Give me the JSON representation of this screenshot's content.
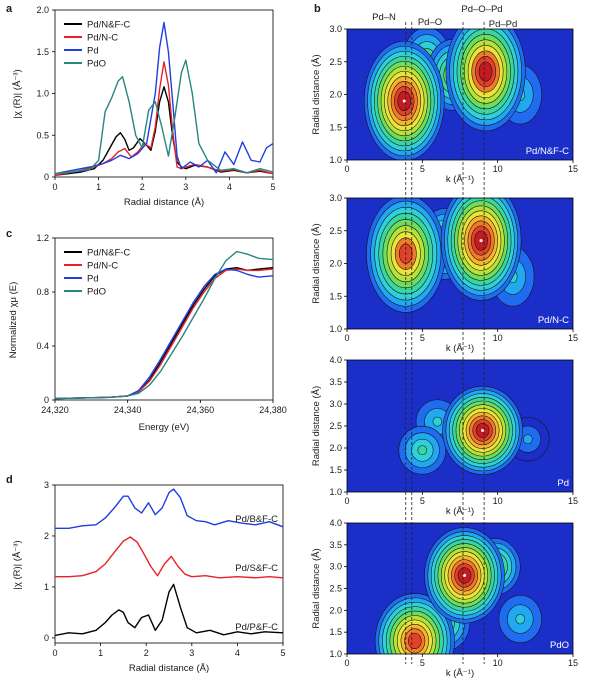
{
  "colors": {
    "Pd/N&F-C": "#000000",
    "Pd/N-C": "#e8202a",
    "Pd": "#1f3fe0",
    "PdO": "#27867e",
    "Pd/B&F-C": "#1f3fe0",
    "Pd/S&F-C": "#e8202a",
    "Pd/P&F-C": "#000000"
  },
  "chart_data": [
    {
      "panel": "a",
      "type": "line",
      "title": "",
      "xlabel": "Radial distance (Å)",
      "ylabel": "|χ (R)| (Å⁻³)",
      "xlim": [
        0,
        5
      ],
      "ylim": [
        0,
        2
      ],
      "xticks": [
        "0",
        "1",
        "2",
        "3",
        "4",
        "5"
      ],
      "yticks": [
        "0",
        "0.5",
        "1.0",
        "1.5",
        "2.0"
      ],
      "legend": [
        "Pd/N&F-C",
        "Pd/N-C",
        "Pd",
        "PdO"
      ],
      "series": [
        {
          "name": "Pd/N&F-C",
          "x": [
            0,
            0.3,
            0.6,
            0.9,
            1.1,
            1.25,
            1.4,
            1.5,
            1.6,
            1.7,
            1.8,
            1.95,
            2.1,
            2.2,
            2.3,
            2.4,
            2.5,
            2.6,
            2.7,
            2.8,
            2.9,
            3.0,
            3.2,
            3.5,
            3.8,
            4.1,
            4.4,
            4.7,
            5.0
          ],
          "y": [
            0.02,
            0.04,
            0.06,
            0.1,
            0.2,
            0.34,
            0.48,
            0.53,
            0.45,
            0.32,
            0.35,
            0.46,
            0.38,
            0.32,
            0.55,
            0.9,
            1.08,
            0.9,
            0.48,
            0.18,
            0.12,
            0.1,
            0.14,
            0.12,
            0.06,
            0.08,
            0.05,
            0.07,
            0.04
          ]
        },
        {
          "name": "Pd/N-C",
          "x": [
            0,
            0.3,
            0.6,
            0.9,
            1.1,
            1.3,
            1.45,
            1.6,
            1.75,
            1.9,
            2.05,
            2.2,
            2.3,
            2.4,
            2.5,
            2.6,
            2.7,
            2.8,
            2.9,
            3.0,
            3.2,
            3.5,
            3.8,
            4.1,
            4.4,
            4.7,
            5.0
          ],
          "y": [
            0.02,
            0.05,
            0.08,
            0.12,
            0.16,
            0.22,
            0.3,
            0.34,
            0.24,
            0.3,
            0.4,
            0.35,
            0.6,
            1.05,
            1.38,
            1.1,
            0.55,
            0.12,
            0.1,
            0.12,
            0.15,
            0.12,
            0.07,
            0.09,
            0.05,
            0.08,
            0.04
          ]
        },
        {
          "name": "Pd",
          "x": [
            0,
            0.4,
            0.8,
            1.1,
            1.3,
            1.5,
            1.7,
            1.9,
            2.1,
            2.3,
            2.4,
            2.5,
            2.6,
            2.7,
            2.8,
            2.9,
            3.1,
            3.3,
            3.5,
            3.7,
            3.9,
            4.1,
            4.3,
            4.5,
            4.7,
            4.85,
            5.0
          ],
          "y": [
            0.04,
            0.08,
            0.12,
            0.16,
            0.2,
            0.26,
            0.22,
            0.28,
            0.4,
            1.0,
            1.55,
            1.85,
            1.5,
            0.9,
            0.25,
            0.1,
            0.18,
            0.12,
            0.2,
            0.05,
            0.3,
            0.15,
            0.42,
            0.2,
            0.18,
            0.35,
            0.4
          ]
        },
        {
          "name": "PdO",
          "x": [
            0,
            0.4,
            0.8,
            1.0,
            1.15,
            1.3,
            1.45,
            1.55,
            1.7,
            1.85,
            2.0,
            2.15,
            2.3,
            2.45,
            2.6,
            2.75,
            2.9,
            3.0,
            3.15,
            3.3,
            3.5,
            3.8,
            4.1,
            4.4,
            4.7,
            5.0
          ],
          "y": [
            0.04,
            0.06,
            0.09,
            0.2,
            0.78,
            0.95,
            1.15,
            1.2,
            0.9,
            0.5,
            0.35,
            0.8,
            0.9,
            0.6,
            0.25,
            0.72,
            1.25,
            1.4,
            1.0,
            0.4,
            0.2,
            0.08,
            0.1,
            0.05,
            0.1,
            0.06
          ]
        }
      ]
    },
    {
      "panel": "c",
      "type": "line",
      "title": "",
      "xlabel": "Energy (eV)",
      "ylabel": "Normalized χμ (E)",
      "xlim": [
        24320,
        24380
      ],
      "ylim": [
        0,
        1.2
      ],
      "xticks": [
        "24,320",
        "24,340",
        "24,360",
        "24,380"
      ],
      "yticks": [
        "0",
        "0.4",
        "0.8",
        "1.2"
      ],
      "legend": [
        "Pd/N&F-C",
        "Pd/N-C",
        "Pd",
        "PdO"
      ],
      "series": [
        {
          "name": "Pd/N&F-C",
          "x": [
            24320,
            24335,
            24340,
            24343,
            24346,
            24349,
            24352,
            24355,
            24358,
            24361,
            24364,
            24367,
            24370,
            24373,
            24376,
            24380
          ],
          "y": [
            0.01,
            0.02,
            0.03,
            0.06,
            0.15,
            0.28,
            0.42,
            0.56,
            0.7,
            0.82,
            0.92,
            0.97,
            0.98,
            0.96,
            0.97,
            0.98
          ]
        },
        {
          "name": "Pd/N-C",
          "x": [
            24320,
            24335,
            24340,
            24343,
            24346,
            24349,
            24352,
            24355,
            24358,
            24361,
            24364,
            24367,
            24370,
            24373,
            24376,
            24380
          ],
          "y": [
            0.01,
            0.02,
            0.03,
            0.06,
            0.14,
            0.26,
            0.4,
            0.54,
            0.68,
            0.8,
            0.9,
            0.96,
            0.97,
            0.96,
            0.96,
            0.97
          ]
        },
        {
          "name": "Pd",
          "x": [
            24320,
            24335,
            24340,
            24343,
            24346,
            24349,
            24352,
            24355,
            24358,
            24361,
            24364,
            24367,
            24370,
            24373,
            24376,
            24380
          ],
          "y": [
            0.01,
            0.02,
            0.03,
            0.07,
            0.17,
            0.3,
            0.44,
            0.58,
            0.72,
            0.84,
            0.93,
            0.97,
            0.96,
            0.93,
            0.91,
            0.92
          ]
        },
        {
          "name": "PdO",
          "x": [
            24320,
            24335,
            24340,
            24343,
            24346,
            24349,
            24352,
            24355,
            24358,
            24361,
            24364,
            24367,
            24370,
            24373,
            24376,
            24380
          ],
          "y": [
            0.01,
            0.02,
            0.03,
            0.05,
            0.11,
            0.21,
            0.34,
            0.47,
            0.61,
            0.75,
            0.9,
            1.03,
            1.1,
            1.08,
            1.05,
            1.04
          ]
        }
      ]
    },
    {
      "panel": "d",
      "type": "line",
      "title": "",
      "xlabel": "Radial distance (Å)",
      "ylabel": "|χ (R)| (Å⁻³)",
      "xlim": [
        0,
        5
      ],
      "ylim": [
        -0.1,
        3
      ],
      "xticks": [
        "0",
        "1",
        "2",
        "3",
        "4",
        "5"
      ],
      "yticks": [
        "0",
        "1",
        "2",
        "3"
      ],
      "labels": [
        "Pd/B&F-C",
        "Pd/S&F-C",
        "Pd/P&F-C"
      ],
      "series": [
        {
          "name": "Pd/B&F-C",
          "x": [
            0,
            0.3,
            0.6,
            0.9,
            1.1,
            1.3,
            1.5,
            1.6,
            1.75,
            1.9,
            2.05,
            2.2,
            2.35,
            2.5,
            2.6,
            2.75,
            2.9,
            3.1,
            3.3,
            3.5,
            3.8,
            4.1,
            4.4,
            4.7,
            5.0
          ],
          "y": [
            2.15,
            2.15,
            2.2,
            2.22,
            2.35,
            2.55,
            2.78,
            2.78,
            2.55,
            2.45,
            2.65,
            2.42,
            2.55,
            2.85,
            2.92,
            2.75,
            2.4,
            2.3,
            2.28,
            2.22,
            2.3,
            2.25,
            2.22,
            2.28,
            2.18
          ]
        },
        {
          "name": "Pd/S&F-C",
          "x": [
            0,
            0.3,
            0.6,
            0.9,
            1.1,
            1.3,
            1.5,
            1.65,
            1.8,
            1.95,
            2.1,
            2.25,
            2.4,
            2.55,
            2.7,
            2.85,
            3.0,
            3.3,
            3.6,
            4.0,
            4.4,
            4.7,
            5.0
          ],
          "y": [
            1.2,
            1.2,
            1.22,
            1.3,
            1.45,
            1.68,
            1.9,
            1.98,
            1.88,
            1.65,
            1.4,
            1.22,
            1.45,
            1.6,
            1.4,
            1.25,
            1.2,
            1.22,
            1.18,
            1.2,
            1.18,
            1.2,
            1.18
          ]
        },
        {
          "name": "Pd/P&F-C",
          "x": [
            0,
            0.3,
            0.6,
            0.9,
            1.1,
            1.25,
            1.4,
            1.5,
            1.6,
            1.75,
            1.9,
            2.05,
            2.2,
            2.35,
            2.5,
            2.6,
            2.75,
            2.9,
            3.1,
            3.4,
            3.7,
            4.0,
            4.3,
            4.6,
            5.0
          ],
          "y": [
            0.05,
            0.1,
            0.08,
            0.15,
            0.3,
            0.45,
            0.55,
            0.5,
            0.3,
            0.2,
            0.4,
            0.45,
            0.15,
            0.35,
            0.9,
            1.05,
            0.6,
            0.2,
            0.1,
            0.15,
            0.06,
            0.12,
            0.08,
            0.12,
            0.1
          ]
        }
      ]
    },
    {
      "panel": "b",
      "type": "heatmap",
      "title": "",
      "xlabel": "k (Å⁻¹)",
      "ylabel": "Radial distance (Å)",
      "annotations": [
        "Pd–N",
        "Pd–O",
        "Pd–O–Pd",
        "Pd–Pd"
      ],
      "xticks": [
        "0",
        "5",
        "10",
        "15"
      ],
      "maps": [
        {
          "name": "Pd/N&F-C",
          "xlim": [
            0,
            15
          ],
          "ylim": [
            1.0,
            3.0
          ],
          "yticks": [
            "1.0",
            "1.5",
            "2.0",
            "2.5",
            "3.0"
          ],
          "peaks": [
            {
              "k": 3.8,
              "r": 1.9,
              "amp": 1.0
            },
            {
              "k": 9.2,
              "r": 2.35,
              "amp": 0.95
            },
            {
              "k": 7.0,
              "r": 2.3,
              "amp": 0.55
            },
            {
              "k": 5.3,
              "r": 2.5,
              "amp": 0.45
            },
            {
              "k": 11.5,
              "r": 2.0,
              "amp": 0.3
            }
          ]
        },
        {
          "name": "Pd/N-C",
          "xlim": [
            0,
            15
          ],
          "ylim": [
            1.0,
            3.0
          ],
          "yticks": [
            "1.0",
            "1.5",
            "2.0",
            "2.5",
            "3.0"
          ],
          "peaks": [
            {
              "k": 3.9,
              "r": 2.15,
              "amp": 0.85
            },
            {
              "k": 8.9,
              "r": 2.35,
              "amp": 1.0
            },
            {
              "k": 6.5,
              "r": 2.3,
              "amp": 0.55
            },
            {
              "k": 11.0,
              "r": 1.8,
              "amp": 0.3
            }
          ]
        },
        {
          "name": "Pd",
          "xlim": [
            0,
            15
          ],
          "ylim": [
            1.0,
            4.0
          ],
          "yticks": [
            "1.0",
            "1.5",
            "2.0",
            "2.5",
            "3.0",
            "3.5",
            "4.0"
          ],
          "peaks": [
            {
              "k": 9.0,
              "r": 2.4,
              "amp": 1.0
            },
            {
              "k": 5.0,
              "r": 1.95,
              "amp": 0.35
            },
            {
              "k": 6.0,
              "r": 2.6,
              "amp": 0.3
            },
            {
              "k": 12.0,
              "r": 2.2,
              "amp": 0.2
            }
          ]
        },
        {
          "name": "PdO",
          "xlim": [
            0,
            15
          ],
          "ylim": [
            1.0,
            4.0
          ],
          "yticks": [
            "1.0",
            "1.5",
            "2.0",
            "2.5",
            "3.0",
            "3.5",
            "4.0"
          ],
          "peaks": [
            {
              "k": 4.5,
              "r": 1.3,
              "amp": 0.9
            },
            {
              "k": 7.8,
              "r": 2.8,
              "amp": 1.0
            },
            {
              "k": 9.8,
              "r": 3.0,
              "amp": 0.5
            },
            {
              "k": 6.5,
              "r": 1.7,
              "amp": 0.45
            },
            {
              "k": 11.5,
              "r": 1.8,
              "amp": 0.3
            }
          ]
        }
      ]
    }
  ]
}
